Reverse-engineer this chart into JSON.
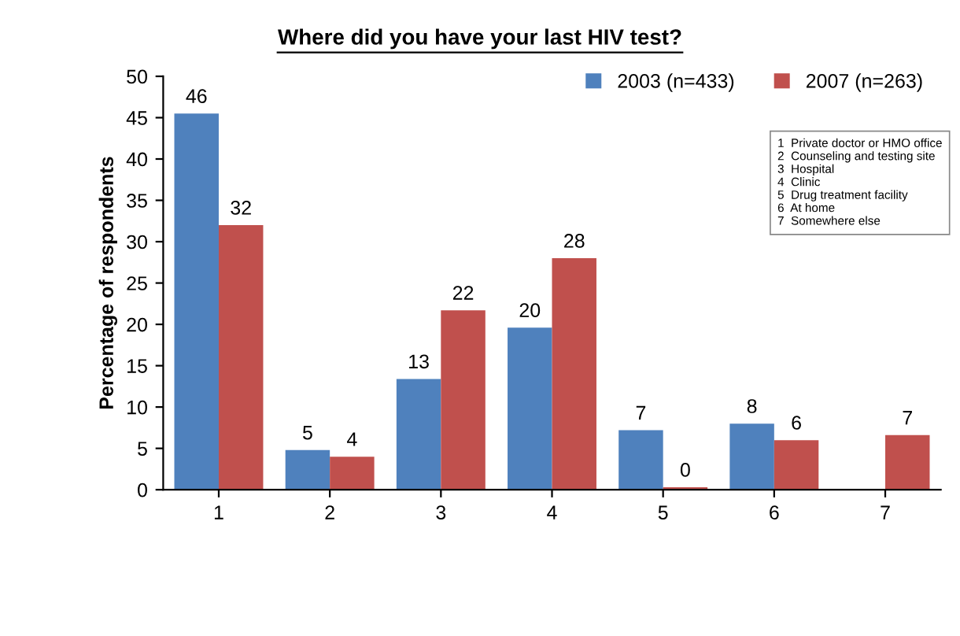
{
  "chart_data": {
    "type": "bar",
    "title": "Where did you have your last HIV test?",
    "ylabel": "Percentage of respondents",
    "categories": [
      "1",
      "2",
      "3",
      "4",
      "5",
      "6",
      "7"
    ],
    "series": [
      {
        "name": "2003 (n=433)",
        "color": "#4f81bd",
        "values": [
          45.5,
          4.8,
          13.4,
          19.6,
          7.2,
          8.0,
          null
        ],
        "value_labels": [
          "46",
          "5",
          "13",
          "20",
          "7",
          "8",
          null
        ]
      },
      {
        "name": "2007 (n=263)",
        "color": "#c0504d",
        "values": [
          32.0,
          4.0,
          21.7,
          28.0,
          0.3,
          6.0,
          6.6
        ],
        "value_labels": [
          "32",
          "4",
          "22",
          "28",
          "0",
          "6",
          "7"
        ]
      }
    ],
    "annotations": [
      "1  Private doctor or HMO office\n2  Counseling and testing site\n3  Hospital\n4  Clinic\n5  Drug treatment facility\n6  At home\n7  Somewhere else"
    ],
    "ylim": [
      0,
      50
    ],
    "yticks": [
      0,
      5,
      10,
      15,
      20,
      25,
      30,
      35,
      40,
      45,
      50
    ],
    "grid": false,
    "legend": "top right"
  }
}
